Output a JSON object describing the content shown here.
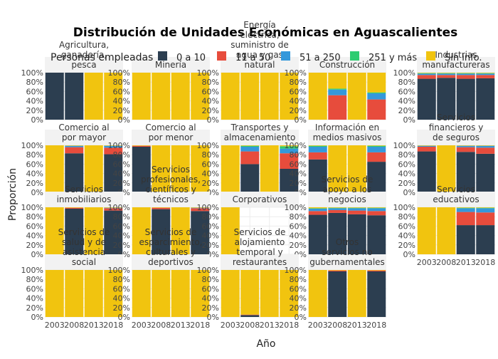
{
  "title": "Distribución de Unidades Económicas en Aguascalientes",
  "xlabel": "Año",
  "ylabel": "Proporción",
  "legend": {
    "title": "Personas empleadas",
    "items": [
      {
        "label": "0 a 10",
        "color": "#2c3e50"
      },
      {
        "label": "11 a 50",
        "color": "#e74c3c"
      },
      {
        "label": "51 a 250",
        "color": "#3498db"
      },
      {
        "label": "251 y más",
        "color": "#2ecc71"
      },
      {
        "label": "Sin info.",
        "color": "#f1c40f"
      }
    ]
  },
  "chart_data": {
    "type": "bar",
    "stacked": true,
    "categories": [
      "2003",
      "2008",
      "2013",
      "2018"
    ],
    "y_ticks": [
      "0%",
      "20%",
      "40%",
      "60%",
      "80%",
      "100%"
    ],
    "ylim": [
      0,
      1
    ],
    "grid": true,
    "legend_placement": "top",
    "series_names": [
      "0 a 10",
      "11 a 50",
      "51 a 250",
      "251 y más",
      "Sin info."
    ],
    "panels": [
      {
        "title": "Agricultura, ganadería, pesca",
        "title_lines": [
          "Agricultura,",
          "ganadería,",
          "pesca"
        ],
        "values": [
          [
            1,
            0,
            0,
            0,
            0
          ],
          [
            1,
            0,
            0,
            0,
            0
          ],
          [
            0,
            0,
            0,
            0,
            1
          ],
          [
            0,
            0,
            0,
            0,
            1
          ]
        ]
      },
      {
        "title": "Minería",
        "title_lines": [
          "Minería"
        ],
        "values": [
          [
            0,
            0,
            0,
            0,
            1
          ],
          [
            0,
            0,
            0,
            0,
            1
          ],
          [
            0,
            0,
            0,
            0,
            1
          ],
          [
            0,
            0,
            0,
            0,
            1
          ]
        ]
      },
      {
        "title": "Energía eléctrica, suministro de agua y gas natural",
        "title_lines": [
          "Energía",
          "eléctrica,",
          "suministro de",
          "agua y gas",
          "natural"
        ],
        "values": [
          [
            0,
            0,
            0,
            0,
            1
          ],
          [
            0,
            0,
            0,
            0,
            1
          ],
          [
            0,
            0,
            0,
            0,
            1
          ],
          [
            0,
            0,
            0,
            0,
            1
          ]
        ]
      },
      {
        "title": "Construcción",
        "title_lines": [
          "Construcción"
        ],
        "values": [
          [
            0,
            0,
            0,
            0,
            1
          ],
          [
            0,
            0.52,
            0.12,
            0.02,
            0.34
          ],
          [
            0,
            0,
            0,
            0,
            1
          ],
          [
            0,
            0.43,
            0.13,
            0.02,
            0.42
          ]
        ]
      },
      {
        "title": "Industrias manufactureras",
        "title_lines": [
          "Industrias",
          "manufactureras"
        ],
        "values": [
          [
            0.87,
            0.08,
            0.03,
            0.01,
            0.01
          ],
          [
            0.89,
            0.06,
            0.03,
            0.01,
            0.01
          ],
          [
            0.87,
            0.08,
            0.03,
            0.01,
            0.01
          ],
          [
            0.88,
            0.07,
            0.03,
            0.01,
            0.01
          ]
        ]
      },
      {
        "title": "Comercio al por mayor",
        "title_lines": [
          "Comercio al",
          "por mayor"
        ],
        "values": [
          [
            0,
            0,
            0,
            0,
            1
          ],
          [
            0.83,
            0.13,
            0.03,
            0.0,
            0.01
          ],
          [
            0,
            0,
            0,
            0,
            1
          ],
          [
            0.81,
            0.14,
            0.04,
            0.0,
            0.01
          ]
        ]
      },
      {
        "title": "Comercio al por menor",
        "title_lines": [
          "Comercio al",
          "por menor"
        ],
        "values": [
          [
            0.97,
            0.02,
            0.0,
            0.0,
            0.01
          ],
          [
            0,
            0,
            0,
            0,
            1
          ],
          [
            0,
            0,
            0,
            0,
            1
          ],
          [
            0,
            0,
            0,
            0,
            1
          ]
        ]
      },
      {
        "title": "Transportes y almacenamiento",
        "title_lines": [
          "Transportes y",
          "almacenamiento"
        ],
        "values": [
          [
            0,
            0,
            0,
            0,
            1
          ],
          [
            0.6,
            0.27,
            0.1,
            0.02,
            0.01
          ],
          [
            0,
            0,
            0,
            0,
            1
          ],
          [
            0.5,
            0.33,
            0.1,
            0.05,
            0.02
          ]
        ]
      },
      {
        "title": "Información en medios masivos",
        "title_lines": [
          "Información en",
          "medios masivos"
        ],
        "values": [
          [
            0.7,
            0.15,
            0.12,
            0.02,
            0.01
          ],
          [
            0,
            0,
            0,
            0,
            1
          ],
          [
            0,
            0,
            0,
            0,
            1
          ],
          [
            0.65,
            0.2,
            0.12,
            0.02,
            0.01
          ]
        ]
      },
      {
        "title": "Servicios financieros y de seguros",
        "title_lines": [
          "Servicios",
          "financieros y",
          "de seguros"
        ],
        "values": [
          [
            0.87,
            0.1,
            0.02,
            0.0,
            0.01
          ],
          [
            0,
            0,
            0,
            0,
            1
          ],
          [
            0.86,
            0.1,
            0.03,
            0.0,
            0.01
          ],
          [
            0.82,
            0.13,
            0.04,
            0.0,
            0.01
          ]
        ]
      },
      {
        "title": "Servicios inmobiliarios",
        "title_lines": [
          "Servicios",
          "inmobiliarios"
        ],
        "values": [
          [
            0,
            0,
            0,
            0,
            1
          ],
          [
            0.97,
            0.02,
            0.0,
            0.0,
            0.01
          ],
          [
            0,
            0,
            0,
            0,
            1
          ],
          [
            0.93,
            0.05,
            0.01,
            0.0,
            0.01
          ]
        ]
      },
      {
        "title": "Servicios profesionales, científicos y técnicos",
        "title_lines": [
          "Servicios",
          "profesionales,",
          "científicos y",
          "técnicos"
        ],
        "values": [
          [
            0,
            0,
            0,
            0,
            1
          ],
          [
            0.96,
            0.03,
            0.0,
            0.0,
            0.01
          ],
          [
            0,
            0,
            0,
            0,
            1
          ],
          [
            0.92,
            0.06,
            0.01,
            0.0,
            0.01
          ]
        ]
      },
      {
        "title": "Corporativos",
        "title_lines": [
          "Corporativos"
        ],
        "values": [
          [
            0,
            0,
            0,
            0,
            1
          ],
          [
            0,
            0,
            0,
            0,
            0
          ],
          [
            0,
            0,
            0,
            0,
            0
          ],
          [
            0,
            0,
            0,
            0,
            0
          ]
        ]
      },
      {
        "title": "Servicios de apoyo a los negocios",
        "title_lines": [
          "Servicios de",
          "apoyo a los",
          "negocios"
        ],
        "values": [
          [
            0.84,
            0.08,
            0.05,
            0.01,
            0.02
          ],
          [
            0.88,
            0.06,
            0.04,
            0.01,
            0.01
          ],
          [
            0.85,
            0.08,
            0.05,
            0.01,
            0.01
          ],
          [
            0.83,
            0.09,
            0.06,
            0.01,
            0.01
          ]
        ]
      },
      {
        "title": "Servicios educativos",
        "title_lines": [
          "Servicios",
          "educativos"
        ],
        "values": [
          [
            0,
            0,
            0,
            0,
            1
          ],
          [
            0,
            0,
            0,
            0,
            1
          ],
          [
            0.62,
            0.28,
            0.08,
            0.01,
            0.01
          ],
          [
            0.62,
            0.27,
            0.09,
            0.01,
            0.01
          ]
        ]
      },
      {
        "title": "Servicios de salud y de asistencia social",
        "title_lines": [
          "Servicios de",
          "salud y de",
          "asistencia",
          "social"
        ],
        "values": [
          [
            0,
            0,
            0,
            0,
            1
          ],
          [
            0,
            0,
            0,
            0,
            1
          ],
          [
            0,
            0,
            0,
            0,
            1
          ],
          [
            0,
            0,
            0,
            0,
            1
          ]
        ]
      },
      {
        "title": "Servicios de esparcimiento, culturales y deportivos",
        "title_lines": [
          "Servicios de",
          "esparcimiento,",
          "culturales y",
          "deportivos"
        ],
        "values": [
          [
            0,
            0,
            0,
            0,
            1
          ],
          [
            0,
            0,
            0,
            0,
            1
          ],
          [
            0,
            0,
            0,
            0,
            1
          ],
          [
            0,
            0,
            0,
            0,
            1
          ]
        ]
      },
      {
        "title": "Servicios de alojamiento temporal y restaurantes",
        "title_lines": [
          "Servicios de",
          "alojamiento",
          "temporal y",
          "restaurantes"
        ],
        "values": [
          [
            0,
            0,
            0,
            0,
            1
          ],
          [
            0.04,
            0.01,
            0.0,
            0.0,
            0.95
          ],
          [
            0,
            0,
            0,
            0,
            1
          ],
          [
            0,
            0,
            0,
            0,
            1
          ]
        ]
      },
      {
        "title": "Otros servicios no gubernamentales",
        "title_lines": [
          "Otros",
          "servicios no",
          "gubernamentales"
        ],
        "values": [
          [
            0,
            0,
            0,
            0,
            1
          ],
          [
            0.97,
            0.02,
            0.0,
            0.0,
            0.01
          ],
          [
            0,
            0,
            0,
            0,
            1
          ],
          [
            0.97,
            0.02,
            0.0,
            0.0,
            0.01
          ]
        ]
      }
    ]
  }
}
